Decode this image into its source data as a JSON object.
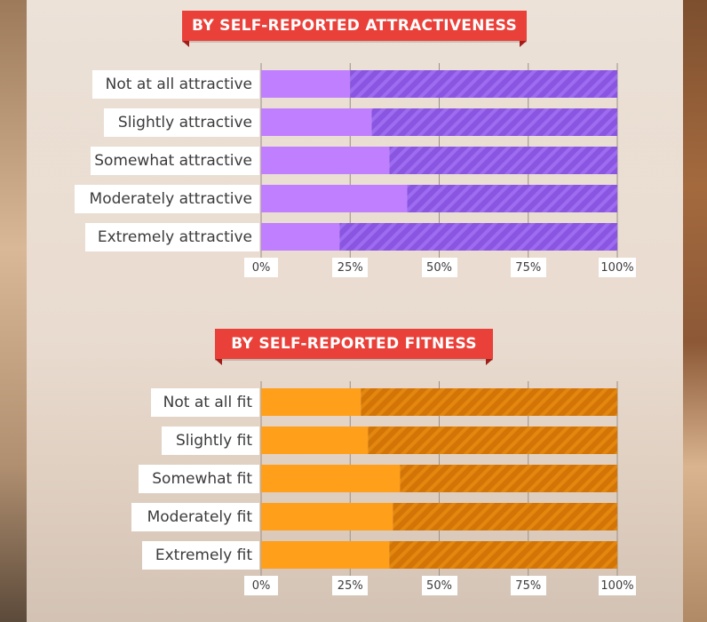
{
  "chart_data": [
    {
      "type": "bar",
      "orientation": "horizontal",
      "stacked": true,
      "title": "BY SELF-REPORTED ATTRACTIVENESS",
      "categories": [
        "Not at all attractive",
        "Slightly attractive",
        "Somewhat attractive",
        "Moderately attractive",
        "Extremely attractive"
      ],
      "series": [
        {
          "name": "solid",
          "values": [
            25,
            31,
            36,
            41,
            22
          ],
          "color": "#bf7fff"
        },
        {
          "name": "hatched",
          "values": [
            75,
            69,
            64,
            59,
            78
          ],
          "color": "#8a55e0"
        }
      ],
      "xlim": [
        0,
        100
      ],
      "tick_labels": [
        "0%",
        "25%",
        "50%",
        "75%",
        "100%"
      ],
      "xlabel": "",
      "ylabel": "",
      "grid": true
    },
    {
      "type": "bar",
      "orientation": "horizontal",
      "stacked": true,
      "title": "BY SELF-REPORTED FITNESS",
      "categories": [
        "Not at all fit",
        "Slightly fit",
        "Somewhat fit",
        "Moderately fit",
        "Extremely fit"
      ],
      "series": [
        {
          "name": "solid",
          "values": [
            28,
            30,
            39,
            37,
            36
          ],
          "color": "#ff9f1a"
        },
        {
          "name": "hatched",
          "values": [
            72,
            70,
            61,
            63,
            64
          ],
          "color": "#d97a08"
        }
      ],
      "xlim": [
        0,
        100
      ],
      "tick_labels": [
        "0%",
        "25%",
        "50%",
        "75%",
        "100%"
      ],
      "xlabel": "",
      "ylabel": "",
      "grid": true
    }
  ],
  "colors": {
    "banner": "#e9413a",
    "banner_shadow": "#9e1e18",
    "label_bg": "#ffffff",
    "text": "#3b3b3b"
  }
}
